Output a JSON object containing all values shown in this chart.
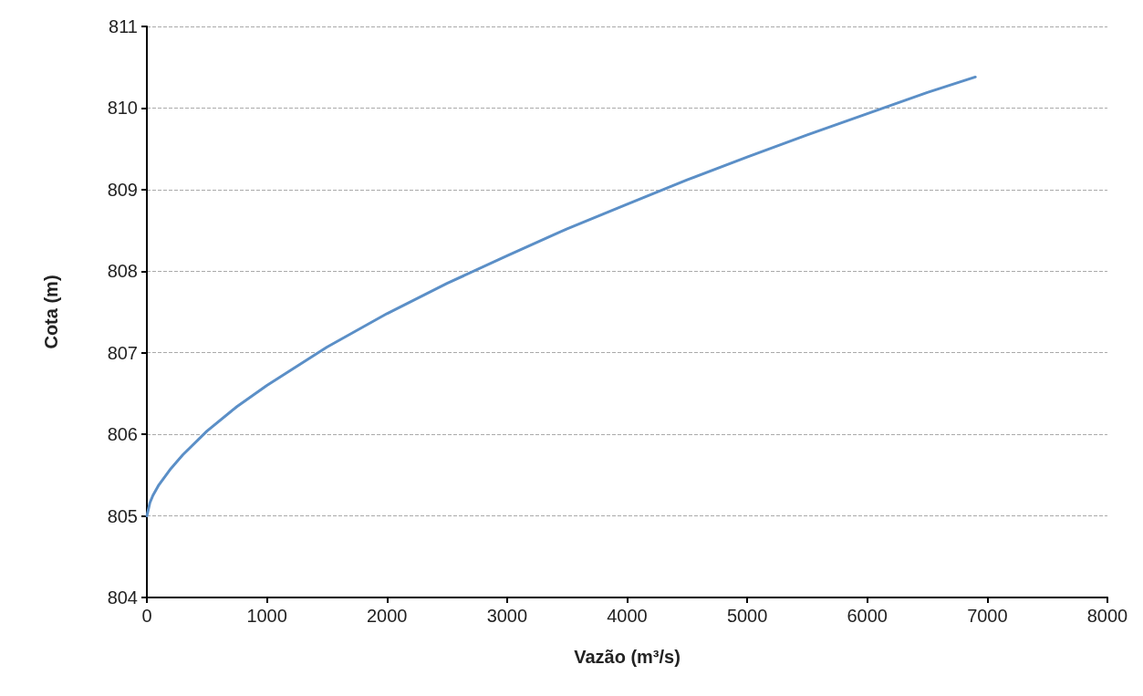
{
  "chart_data": {
    "type": "line",
    "xlabel": "Vazão (m³/s)",
    "ylabel": "Cota (m)",
    "x": [
      0,
      25,
      50,
      100,
      200,
      300,
      500,
      750,
      1000,
      1500,
      2000,
      2500,
      3000,
      3500,
      4000,
      4500,
      5000,
      5500,
      6000,
      6500,
      6900
    ],
    "series": [
      {
        "color": "#5b8fc7",
        "values": [
          805,
          805.16,
          805.25,
          805.38,
          805.58,
          805.75,
          806.04,
          806.34,
          806.6,
          807.07,
          807.48,
          807.85,
          808.19,
          808.52,
          808.82,
          809.12,
          809.4,
          809.67,
          809.93,
          810.19,
          810.38
        ]
      }
    ],
    "xlim": [
      0,
      8000
    ],
    "xticks": [
      0,
      1000,
      2000,
      3000,
      4000,
      5000,
      6000,
      7000,
      8000
    ],
    "ylim": [
      804,
      811
    ],
    "yticks": [
      804,
      805,
      806,
      807,
      808,
      809,
      810,
      811
    ],
    "grid": "y",
    "marker": "none",
    "line_style": "solid"
  }
}
